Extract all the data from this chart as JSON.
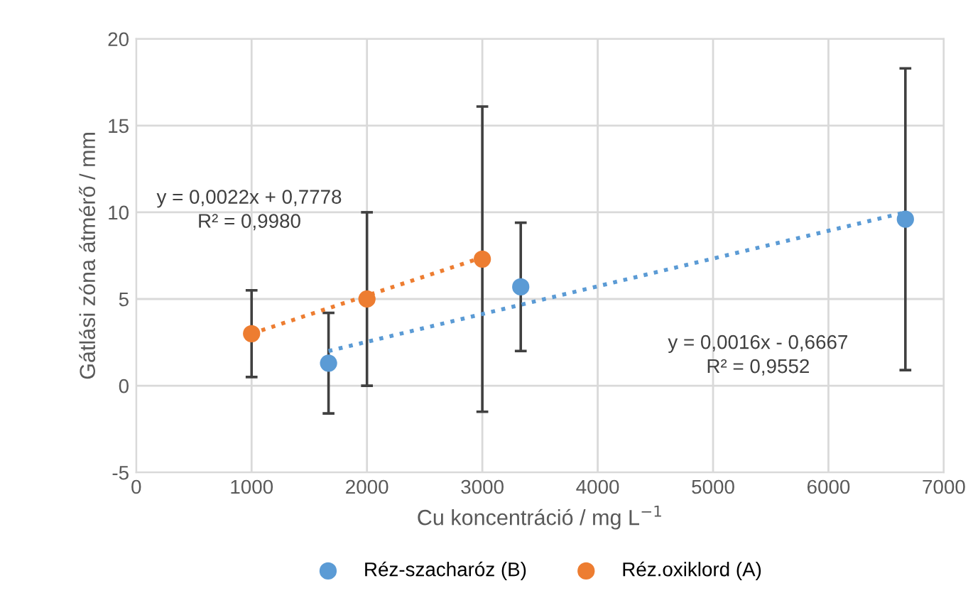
{
  "chart_data": {
    "type": "scatter",
    "xlabel": "Cu koncentráció / mg L$^{−1}$",
    "ylabel": "Gátlási zóna átmérő / mm",
    "xlim": [
      0,
      7000
    ],
    "xticks": [
      0,
      1000,
      2000,
      3000,
      4000,
      5000,
      6000,
      7000
    ],
    "ylim": [
      -5,
      20
    ],
    "yticks": [
      -5,
      0,
      5,
      10,
      15,
      20
    ],
    "grid": true,
    "legend": "bottom",
    "series": [
      {
        "name": "Réz-szacharóz (B)",
        "color": "#5b9bd5",
        "x": [
          1667,
          3333,
          6667
        ],
        "values": [
          1.3,
          5.7,
          9.6
        ],
        "marker": "circle",
        "errors": [
          2.9,
          3.7,
          8.7
        ]
      },
      {
        "name": "Réz.oxiklord (A)",
        "color": "#ed7d31",
        "x": [
          1000,
          2000,
          3000
        ],
        "values": [
          3.0,
          5.0,
          7.3
        ],
        "marker": "circle",
        "errors": [
          2.5,
          5.0,
          8.8
        ]
      },
      {
        "type": "line",
        "color": "#5b9bd5",
        "line_style": "dotted",
        "x": [
          1667,
          6667
        ],
        "values": [
          2.0,
          10.0
        ]
      },
      {
        "type": "line",
        "color": "#ed7d31",
        "line_style": "dotted",
        "x": [
          1000,
          3000
        ],
        "values": [
          3.0,
          7.4
        ]
      }
    ],
    "annotations": [
      "y = 0,0022x + 0,7778\nR² = 0,9980",
      "y = 0,0016x - 0,6667\nR² = 0,9552"
    ]
  }
}
